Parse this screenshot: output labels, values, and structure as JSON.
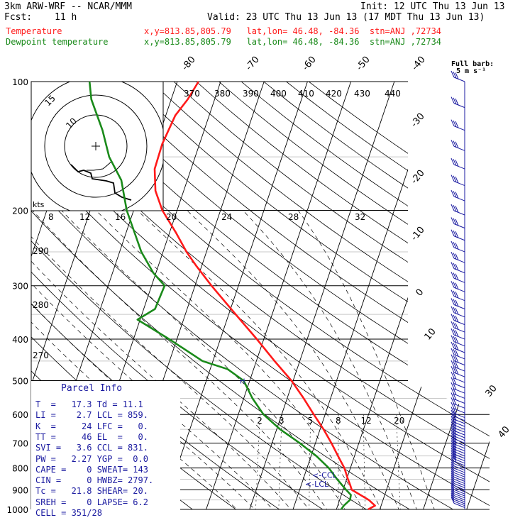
{
  "header": {
    "model": "3km ARW-WRF -- NCAR/MMM",
    "init": "Init: 12 UTC Thu 13 Jun 13",
    "fcst_label": "Fcst:",
    "fcst_value": "11 h",
    "valid": "Valid: 23 UTC Thu 13 Jun 13 (17 MDT Thu 13 Jun 13)",
    "temp_label": "Temperature",
    "dew_label": "Dewpoint temperature",
    "location": "x,y=813.85,805.79   lat,lon= 46.48, -84.36  stn=ANJ ,72734",
    "full_barb": "Full barb:",
    "full_barb_units": "5 m s⁻¹"
  },
  "parcel": {
    "title": "Parcel Info",
    "rows": [
      "T  =   17.3 Td = 11.1",
      "LI =    2.7 LCL = 859.",
      "K  =     24 LFC =   0.",
      "TT =     46 EL  =   0.",
      "SVI =   3.6 CCL = 831.",
      "PW =   2.27 YGP =  0.0",
      "CAPE =    0 SWEAT= 143",
      "CIN =     0 HWBZ= 2797.",
      "Tc =   21.8 SHEAR= 20.",
      "SREH =    0 LAPSE= 6.2",
      "CELL = 351/28"
    ]
  },
  "annotations": {
    "ccl": "<-CCL",
    "lcl": "<-LCL",
    "kts": "kts",
    "hodo_rings": [
      "15",
      "10"
    ]
  },
  "chart_data": {
    "type": "line",
    "title": "",
    "xlabel": "",
    "ylabel": "",
    "pressure_ticks": [
      100,
      200,
      300,
      400,
      500,
      600,
      700,
      800,
      900,
      1000
    ],
    "skewed_temp_labels": [
      -80,
      -70,
      -60,
      -50,
      -40,
      -30,
      -20,
      -10,
      0,
      10,
      30,
      40
    ],
    "theta_e_labels": [
      370,
      380,
      390,
      400,
      410,
      420,
      430,
      440
    ],
    "theta_labels": [
      290,
      280,
      270
    ],
    "mixing_ratio_labels": [
      2,
      3,
      5,
      8,
      12,
      20
    ],
    "hodo_speed_labels": [
      8,
      12,
      16,
      20,
      24,
      28,
      32
    ],
    "series": [
      {
        "name": "Temperature",
        "color": "#ff1a1a",
        "points": [
          [
            1000,
            17.3
          ],
          [
            980,
            18.6
          ],
          [
            950,
            16.7
          ],
          [
            925,
            14.4
          ],
          [
            900,
            12.0
          ],
          [
            875,
            11.2
          ],
          [
            850,
            10.3
          ],
          [
            800,
            8.6
          ],
          [
            750,
            6.2
          ],
          [
            700,
            3.7
          ],
          [
            650,
            0.8
          ],
          [
            600,
            -2.6
          ],
          [
            550,
            -6.2
          ],
          [
            500,
            -10.4
          ],
          [
            450,
            -15.8
          ],
          [
            400,
            -21.6
          ],
          [
            350,
            -28.4
          ],
          [
            300,
            -36.2
          ],
          [
            270,
            -41.2
          ],
          [
            250,
            -44.6
          ],
          [
            225,
            -48.6
          ],
          [
            200,
            -53.4
          ],
          [
            180,
            -56.5
          ],
          [
            160,
            -58.4
          ],
          [
            140,
            -58.6
          ],
          [
            120,
            -57.8
          ],
          [
            110,
            -56.2
          ],
          [
            100,
            -55.1
          ]
        ]
      },
      {
        "name": "Dewpoint temperature",
        "color": "#1a8a1a",
        "points": [
          [
            1000,
            11.1
          ],
          [
            980,
            11.4
          ],
          [
            950,
            12.4
          ],
          [
            925,
            12.2
          ],
          [
            900,
            10.7
          ],
          [
            850,
            7.8
          ],
          [
            800,
            5.0
          ],
          [
            750,
            1.2
          ],
          [
            700,
            -3.6
          ],
          [
            650,
            -9.2
          ],
          [
            600,
            -14.2
          ],
          [
            550,
            -18.0
          ],
          [
            500,
            -21.4
          ],
          [
            470,
            -26.0
          ],
          [
            450,
            -32.4
          ],
          [
            400,
            -41.8
          ],
          [
            360,
            -50.6
          ],
          [
            340,
            -47.4
          ],
          [
            300,
            -47.0
          ],
          [
            280,
            -50.6
          ],
          [
            250,
            -55.0
          ],
          [
            200,
            -61.6
          ],
          [
            170,
            -65.2
          ],
          [
            150,
            -69.8
          ],
          [
            130,
            -73.4
          ],
          [
            110,
            -78.4
          ],
          [
            100,
            -80.2
          ]
        ]
      }
    ],
    "wind_barbs_hint": "wind barbs plotted along right edge, speeds up to ~20 m/s"
  },
  "colors": {
    "temperature": "#ff1a1a",
    "dewpoint": "#1a8a1a",
    "labels": "#1a1aa0",
    "grid": "#000000",
    "dry_adiabat": "#000000"
  }
}
